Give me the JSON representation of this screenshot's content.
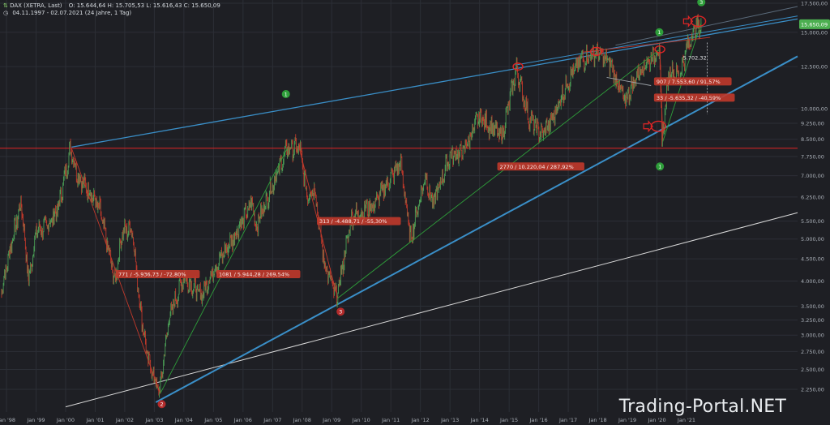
{
  "header": {
    "symbol": "DAX (XETRA, Last)",
    "open": "O: 15.644,64",
    "high": "H: 15.705,53",
    "low": "L: 15.616,43",
    "close": "C: 15.650,09",
    "range": "04.11.1997 - 02.07.2021",
    "range_detail": "(24 Jahre, 1 Tag)"
  },
  "watermark": "Trading-Portal.NET",
  "colors": {
    "background": "#1e1f24",
    "grid": "#2c2f36",
    "price_up": "#4a9d55",
    "price_down": "#c0392b",
    "horizontal_line": "#e02525",
    "trend_blue": "#3a8fc8",
    "trend_white": "#d8d8d8",
    "diag_green": "#2e9e3a",
    "diag_red": "#c0392b",
    "label_bg": "#c0392b",
    "last_price_bg": "#4caf50",
    "marker_green": "#2e9e3a",
    "marker_red": "#b32b2b"
  },
  "chart_data": {
    "type": "line",
    "title": "DAX (XETRA, Last)",
    "scale": "log",
    "ylim": [
      2000,
      17500
    ],
    "xlim": [
      "1997-11-04",
      "2021-07-02"
    ],
    "grid": true,
    "y_ticks": [
      "17.500,00",
      "15.000,00",
      "12.500,00",
      "10.000,00",
      "9.250,00",
      "8.500,00",
      "7.750,00",
      "7.000,00",
      "6.250,00",
      "5.500,00",
      "5.000,00",
      "4.500,00",
      "4.000,00",
      "3.500,00",
      "3.250,00",
      "3.000,00",
      "2.750,00",
      "2.500,00",
      "2.250,00"
    ],
    "x_ticks": [
      "Jan '98",
      "Jan '99",
      "Jan '00",
      "Jan '01",
      "Jan '02",
      "Jan '03",
      "Jan '04",
      "Jan '05",
      "Jan '06",
      "Jan '07",
      "Jan '08",
      "Jan '09",
      "Jan '10",
      "Jan '11",
      "Jan '12",
      "Jan '13",
      "Jan '14",
      "Jan '15",
      "Jan '16",
      "Jan '17",
      "Jan '18",
      "Jan '19",
      "Jan '20",
      "Jan '21"
    ],
    "last_price": "15.650,09",
    "series": [
      {
        "values": [
          [
            "1997-11",
            3800
          ],
          [
            "1998-03",
            4900
          ],
          [
            "1998-07",
            6100
          ],
          [
            "1998-10",
            4000
          ],
          [
            "1999-01",
            5200
          ],
          [
            "1999-06",
            5400
          ],
          [
            "1999-10",
            5900
          ],
          [
            "2000-03",
            8100
          ],
          [
            "2000-06",
            7000
          ],
          [
            "2000-11",
            6400
          ],
          [
            "2001-03",
            5800
          ],
          [
            "2001-09",
            4000
          ],
          [
            "2001-12",
            5200
          ],
          [
            "2002-04",
            5300
          ],
          [
            "2002-07",
            3600
          ],
          [
            "2002-10",
            2700
          ],
          [
            "2003-03",
            2200
          ],
          [
            "2003-07",
            3300
          ],
          [
            "2004-01",
            4100
          ],
          [
            "2004-08",
            3700
          ],
          [
            "2005-01",
            4250
          ],
          [
            "2005-07",
            4800
          ],
          [
            "2006-05",
            6100
          ],
          [
            "2006-06",
            5300
          ],
          [
            "2007-01",
            6700
          ],
          [
            "2007-07",
            8100
          ],
          [
            "2007-12",
            8100
          ],
          [
            "2008-03",
            6300
          ],
          [
            "2008-06",
            6600
          ],
          [
            "2008-10",
            4400
          ],
          [
            "2009-03",
            3650
          ],
          [
            "2009-09",
            5600
          ],
          [
            "2010-06",
            6000
          ],
          [
            "2011-05",
            7500
          ],
          [
            "2011-09",
            5000
          ],
          [
            "2012-03",
            7000
          ],
          [
            "2012-06",
            6000
          ],
          [
            "2013-01",
            7800
          ],
          [
            "2013-06",
            7900
          ],
          [
            "2014-01",
            9600
          ],
          [
            "2014-10",
            8600
          ],
          [
            "2015-04",
            12400
          ],
          [
            "2015-09",
            9500
          ],
          [
            "2016-02",
            8700
          ],
          [
            "2016-06",
            9300
          ],
          [
            "2017-01",
            11600
          ],
          [
            "2017-06",
            12900
          ],
          [
            "2018-01",
            13500
          ],
          [
            "2018-06",
            12700
          ],
          [
            "2018-12",
            10400
          ],
          [
            "2019-06",
            12300
          ],
          [
            "2020-02",
            13700
          ],
          [
            "2020-03",
            8400
          ],
          [
            "2020-06",
            12300
          ],
          [
            "2020-10",
            11800
          ],
          [
            "2021-01",
            13700
          ],
          [
            "2021-04",
            15200
          ],
          [
            "2021-07",
            15650
          ]
        ]
      }
    ],
    "annotations": [
      "771 / -5.936,73 / -72,80%",
      "1081 / 5.944,28 / 269,54%",
      "313 / -4.488,71 / -55,30%",
      "2770 / 10.220,04 / 287,92%",
      "907 / 7.553,60 / 91,57%",
      "33 / -5.635,32 / -40,59%",
      "5.702,32"
    ],
    "wave_markers": [
      {
        "label": "1",
        "value": 8100
      },
      {
        "label": "1",
        "value": 13700
      },
      {
        "label": "1",
        "value": 8400
      },
      {
        "label": "2",
        "value": 2200
      },
      {
        "label": "3",
        "value": 3650
      },
      {
        "label": "3",
        "value": 15650
      }
    ],
    "horizontal_line": 8100
  }
}
